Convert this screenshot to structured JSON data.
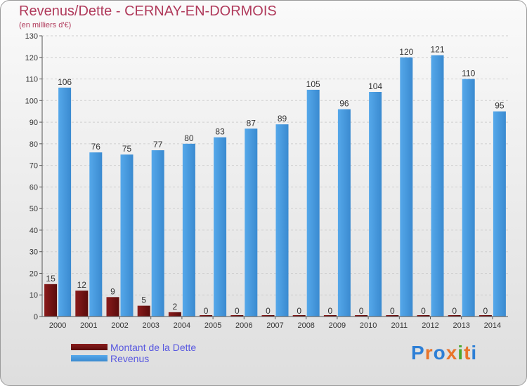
{
  "header": {
    "title": "Revenus/Dette - CERNAY-EN-DORMOIS",
    "subtitle": "(en milliers d'€)"
  },
  "logo": {
    "letters": [
      "P",
      "r",
      "o",
      "x",
      "i",
      "t",
      "i"
    ],
    "colors": [
      "#2d7fd6",
      "#e8742a",
      "#2d7fd6",
      "#e8742a",
      "#4aa82e",
      "#e8742a",
      "#2d7fd6"
    ]
  },
  "chart_data": {
    "type": "bar",
    "categories": [
      "2000",
      "2001",
      "2002",
      "2003",
      "2004",
      "2005",
      "2006",
      "2007",
      "2008",
      "2009",
      "2010",
      "2011",
      "2012",
      "2013",
      "2014"
    ],
    "series": [
      {
        "name": "Montant de la Dette",
        "color": "#7a1414",
        "values": [
          15,
          12,
          9,
          5,
          2,
          0,
          0,
          0,
          0,
          0,
          0,
          0,
          0,
          0,
          0
        ]
      },
      {
        "name": "Revenus",
        "color": "#4a9de0",
        "values": [
          106,
          76,
          75,
          77,
          80,
          83,
          87,
          89,
          105,
          96,
          104,
          120,
          121,
          110,
          95
        ]
      }
    ],
    "ylim": [
      0,
      130
    ],
    "yticks": [
      0,
      10,
      20,
      30,
      40,
      50,
      60,
      70,
      80,
      90,
      100,
      110,
      120,
      130
    ],
    "grid": true,
    "legend": "bottom-left"
  }
}
